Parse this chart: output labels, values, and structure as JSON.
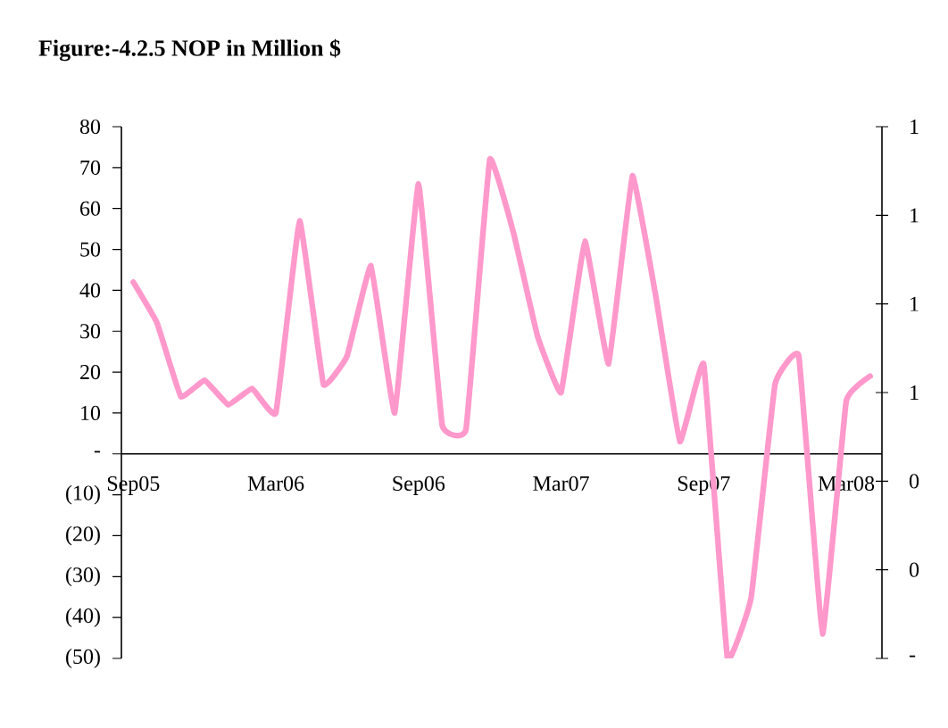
{
  "chart_data": {
    "type": "line",
    "title": "Figure:-4.2.5 NOP in Million $",
    "categories": [
      "Sep05",
      null,
      null,
      null,
      null,
      null,
      "Mar06",
      null,
      null,
      null,
      null,
      null,
      "Sep06",
      null,
      null,
      null,
      null,
      null,
      "Mar07",
      null,
      null,
      null,
      null,
      null,
      "Sep07",
      null,
      null,
      null,
      null,
      null,
      "Mar08",
      null
    ],
    "series": [
      {
        "color": "#ff99cc",
        "values": [
          42,
          32,
          14,
          18,
          12,
          16,
          10,
          57,
          17,
          24,
          46,
          10,
          66,
          7,
          6,
          72,
          54,
          29,
          15,
          52,
          22,
          68,
          38,
          3,
          22,
          -50,
          -35,
          17,
          24,
          -44,
          13,
          19
        ]
      }
    ],
    "ylim": [
      -50,
      80
    ],
    "yticks": [
      80,
      70,
      60,
      50,
      40,
      30,
      20,
      10,
      {
        "value": 0,
        "label": "-"
      },
      {
        "value": -10,
        "label": "(10)"
      },
      {
        "value": -20,
        "label": "(20)"
      },
      {
        "value": -30,
        "label": "(30)"
      },
      {
        "value": -40,
        "label": "(40)"
      },
      {
        "value": -50,
        "label": "(50)"
      }
    ],
    "y2lim": [
      0,
      1.2
    ],
    "y2ticks": [
      {
        "value": 0,
        "label": "-"
      },
      {
        "value": 0.2,
        "label": "0"
      },
      {
        "value": 0.4,
        "label": "0"
      },
      {
        "value": 0.6,
        "label": "1"
      },
      {
        "value": 0.8,
        "label": "1"
      },
      {
        "value": 1.0,
        "label": "1"
      },
      {
        "value": 1.2,
        "label": "1"
      }
    ],
    "line_style": "solid",
    "marker": "none"
  }
}
